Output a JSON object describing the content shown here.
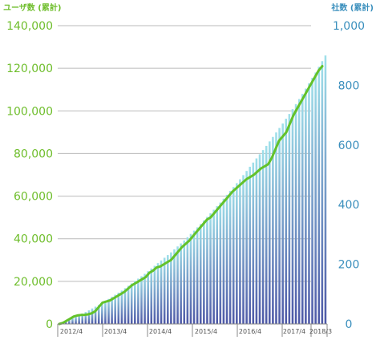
{
  "colors": {
    "user_line": "#63c22a",
    "bar_top": "#9fe0ea",
    "bar_bottom": "#4d58a6",
    "grid": "#bbbbbb",
    "left_axis": "#6fbe2c",
    "right_axis": "#3a8fbd"
  },
  "chart_data": {
    "type": "bar+line",
    "left_axis_title": "ユーザ数 (累計)",
    "right_axis_title": "社数 (累計)",
    "left_ticks": [
      "0",
      "20,000",
      "40,000",
      "60,000",
      "80,000",
      "100,000",
      "120,000",
      "140,000"
    ],
    "right_ticks": [
      "0",
      "200",
      "400",
      "600",
      "800",
      "1,000"
    ],
    "left_ylim": [
      0,
      140000
    ],
    "right_ylim": [
      0,
      1000
    ],
    "x_labels": [
      "2012/4",
      "2013/4",
      "2014/4",
      "2015/4",
      "2016/4",
      "2017/4",
      "2018/3"
    ],
    "grid": true,
    "series": [
      {
        "name": "ユーザ数 (累計)",
        "type": "line",
        "axis": "left",
        "values": [
          0,
          500,
          1500,
          2500,
          3500,
          4000,
          4200,
          4300,
          4500,
          5000,
          6000,
          8000,
          10000,
          10500,
          11000,
          12000,
          13000,
          14000,
          15000,
          16500,
          18000,
          19000,
          20000,
          21000,
          22000,
          24000,
          25000,
          26500,
          27000,
          28000,
          29000,
          30000,
          32000,
          34000,
          36000,
          37500,
          39000,
          41000,
          43000,
          45000,
          47000,
          49000,
          50000,
          52000,
          54000,
          56000,
          58000,
          60000,
          62000,
          63500,
          65000,
          66500,
          68000,
          69000,
          70000,
          71500,
          73000,
          74000,
          75000,
          78000,
          82000,
          86000,
          88000,
          90000,
          94000,
          98000,
          101000,
          104000,
          107000,
          110000,
          113000,
          116000,
          119000,
          121000
        ]
      },
      {
        "name": "社数 (累計)",
        "type": "bar",
        "axis": "right",
        "values": [
          3,
          7,
          12,
          16,
          20,
          25,
          30,
          35,
          40,
          46,
          52,
          58,
          64,
          70,
          77,
          84,
          91,
          98,
          105,
          112,
          120,
          128,
          136,
          144,
          152,
          160,
          168,
          177,
          186,
          195,
          204,
          213,
          222,
          231,
          240,
          250,
          260,
          270,
          280,
          291,
          302,
          313,
          324,
          335,
          347,
          359,
          371,
          383,
          395,
          407,
          420,
          433,
          446,
          459,
          472,
          485,
          499,
          513,
          527,
          541,
          555,
          569,
          583,
          597,
          612,
          627,
          642,
          657,
          672,
          688,
          704,
          720,
          737,
          754,
          771,
          789,
          807,
          825,
          843,
          862,
          881,
          900
        ]
      }
    ]
  }
}
